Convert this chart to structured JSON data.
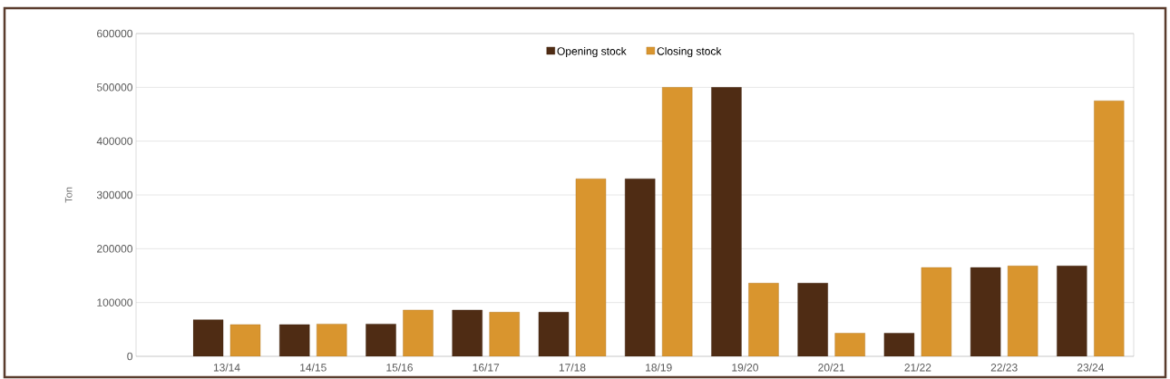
{
  "chart_data": {
    "type": "bar",
    "ylabel": "Ton",
    "categories": [
      "13/14",
      "14/15",
      "15/16",
      "16/17",
      "17/18",
      "18/19",
      "19/20",
      "20/21",
      "21/22",
      "22/23",
      "23/24"
    ],
    "series": [
      {
        "name": "Opening stock",
        "color": "#4f2c14",
        "values": [
          68000,
          59000,
          60000,
          86000,
          82000,
          330000,
          500000,
          136000,
          43000,
          165000,
          168000
        ]
      },
      {
        "name": "Closing stock",
        "color": "#d9952e",
        "values": [
          59000,
          60000,
          86000,
          82000,
          330000,
          500000,
          136000,
          43000,
          165000,
          168000,
          475000
        ]
      }
    ],
    "ylim": [
      0,
      600000
    ],
    "yticks": [
      0,
      100000,
      200000,
      300000,
      400000,
      500000,
      600000
    ],
    "grid": "y",
    "legend": "top"
  }
}
